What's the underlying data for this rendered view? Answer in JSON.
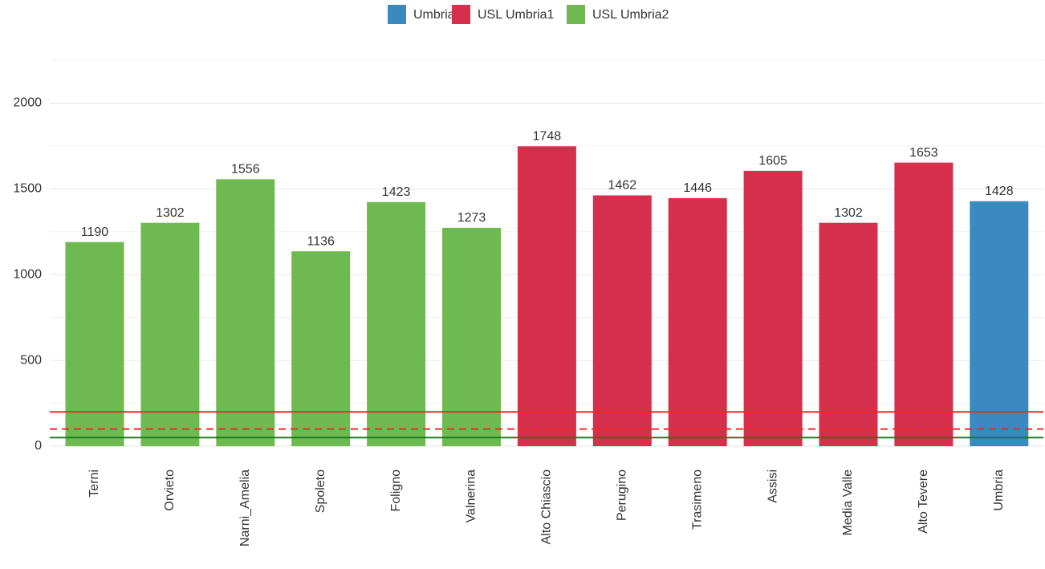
{
  "chart_data": {
    "type": "bar",
    "categories": [
      "Terni",
      "Orvieto",
      "Narni_Amelia",
      "Spoleto",
      "Foligno",
      "Valnerina",
      "Alto Chiascio",
      "Perugino",
      "Trasimeno",
      "Assisi",
      "Media Valle",
      "Alto Tevere",
      "Umbria"
    ],
    "series": [
      {
        "name": "Umbria",
        "color": "#3a89bf",
        "values": [
          null,
          null,
          null,
          null,
          null,
          null,
          null,
          null,
          null,
          null,
          null,
          null,
          1428
        ]
      },
      {
        "name": "USL Umbria1",
        "color": "#d52f4b",
        "values": [
          null,
          null,
          null,
          null,
          null,
          null,
          1748,
          1462,
          1446,
          1605,
          1302,
          1653,
          null
        ]
      },
      {
        "name": "USL Umbria2",
        "color": "#6fba50",
        "values": [
          1190,
          1302,
          1556,
          1136,
          1423,
          1273,
          null,
          null,
          null,
          null,
          null,
          null,
          null
        ]
      }
    ],
    "ylim": [
      0,
      2250
    ],
    "yticks": [
      0,
      500,
      1000,
      1500,
      2000
    ],
    "grid": true,
    "legend": "top",
    "reference_lines": [
      {
        "value": 200,
        "color": "#ee2a2a",
        "dash": false
      },
      {
        "value": 100,
        "color": "#ee2a2a",
        "dash": true
      },
      {
        "value": 50,
        "color": "#1f7a1f",
        "dash": false
      }
    ]
  }
}
